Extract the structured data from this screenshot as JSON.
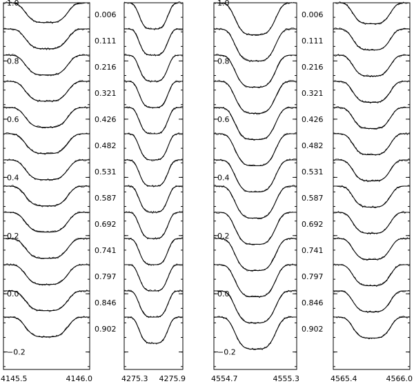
{
  "chart_data": {
    "type": "line",
    "description_free": true,
    "phases": [
      "0.006",
      "0.111",
      "0.216",
      "0.321",
      "0.426",
      "0.482",
      "0.531",
      "0.587",
      "0.692",
      "0.741",
      "0.797",
      "0.846",
      "0.902"
    ],
    "profile_offset_step": -0.09,
    "ylim": [
      -0.26,
      1.0
    ],
    "yticks": [
      {
        "value": 1.0,
        "label": "1.0"
      },
      {
        "value": 0.8,
        "label": "0.8"
      },
      {
        "value": 0.6,
        "label": "0.6"
      },
      {
        "value": 0.4,
        "label": "0.4"
      },
      {
        "value": 0.2,
        "label": "0.2"
      },
      {
        "value": 0.0,
        "label": "0.0"
      },
      {
        "value": -0.2,
        "label": "−0.2"
      }
    ],
    "panels": [
      {
        "name": "panel-1",
        "xlim": [
          4145.5,
          4146.0
        ],
        "xtick_labels": [
          "4145.5",
          "4146.0"
        ],
        "line_depth": 0.068,
        "top_value": 1.0,
        "has_yaxis": true
      },
      {
        "name": "panel-2",
        "xlim": [
          4275.3,
          4275.9
        ],
        "xtick_labels": [
          "4275.3",
          "4275.9"
        ],
        "line_depth": 0.09,
        "top_value": 1.0,
        "has_yaxis": false
      },
      {
        "name": "panel-3",
        "xlim": [
          4554.7,
          4555.3
        ],
        "xtick_labels": [
          "4554.7",
          "4555.3"
        ],
        "line_depth": 0.11,
        "top_value": 1.0,
        "has_yaxis": true
      },
      {
        "name": "panel-4",
        "xlim": [
          4565.4,
          4566.0
        ],
        "xtick_labels": [
          "4565.4",
          "4566.0"
        ],
        "line_depth": 0.072,
        "top_value": 1.0,
        "has_yaxis": false
      }
    ]
  }
}
